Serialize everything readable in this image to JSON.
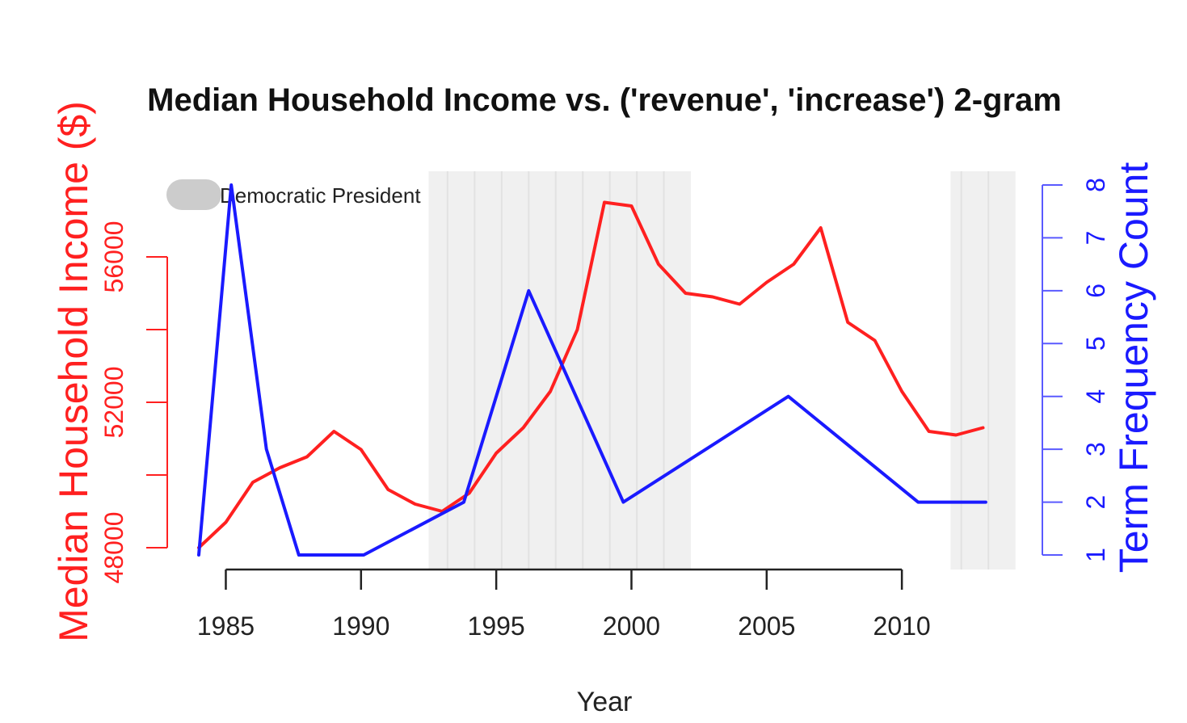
{
  "chart_data": {
    "type": "line",
    "title": "Median Household Income vs. ('revenue', 'increase') 2-gram",
    "xlabel": "Year",
    "ylabel_left": "Median Household Income ($)",
    "ylabel_right": "Term Frequency Count",
    "xlim": [
      1984,
      2014
    ],
    "ylim_left": [
      48000,
      58000
    ],
    "ylim_right": [
      1,
      8
    ],
    "x_ticks": [
      "1985",
      "1990",
      "1995",
      "2000",
      "2005",
      "2010"
    ],
    "y_left_ticks": [
      "48000",
      "52000",
      "56000"
    ],
    "y_right_ticks": [
      "1",
      "2",
      "3",
      "4",
      "5",
      "6",
      "7",
      "8"
    ],
    "legend": {
      "position": "top-left",
      "entries": [
        "Democratic President"
      ]
    },
    "shaded_periods": [
      [
        1992.5,
        2002.2
      ],
      [
        2011.8,
        2014.2
      ]
    ],
    "series": [
      {
        "name": "Median Household Income",
        "axis": "left",
        "color": "#ff2020",
        "x": [
          1984,
          1985,
          1986,
          1987,
          1988,
          1989,
          1990,
          1991,
          1992,
          1993,
          1994,
          1995,
          1996,
          1997,
          1998,
          1999,
          2000,
          2001,
          2002,
          2003,
          2004,
          2005,
          2006,
          2007,
          2008,
          2009,
          2010,
          2011,
          2012,
          2013
        ],
        "values": [
          48000,
          48700,
          49800,
          50200,
          50500,
          51200,
          50700,
          49600,
          49200,
          49000,
          49500,
          50600,
          51300,
          52300,
          54000,
          57500,
          57400,
          55800,
          55000,
          54900,
          54700,
          55300,
          55800,
          56800,
          54200,
          53700,
          52300,
          51200,
          51100,
          51300
        ]
      },
      {
        "name": "Term Frequency Count",
        "axis": "right",
        "color": "#1a1aff",
        "x": [
          1984,
          1985.2,
          1986.5,
          1987.7,
          1988.7,
          1990.1,
          1993.8,
          1996.2,
          1999.7,
          2005.8,
          2010.6,
          2013.1
        ],
        "values": [
          1,
          8,
          3,
          1,
          1,
          1,
          2,
          6,
          2,
          4,
          2,
          2
        ]
      }
    ]
  }
}
